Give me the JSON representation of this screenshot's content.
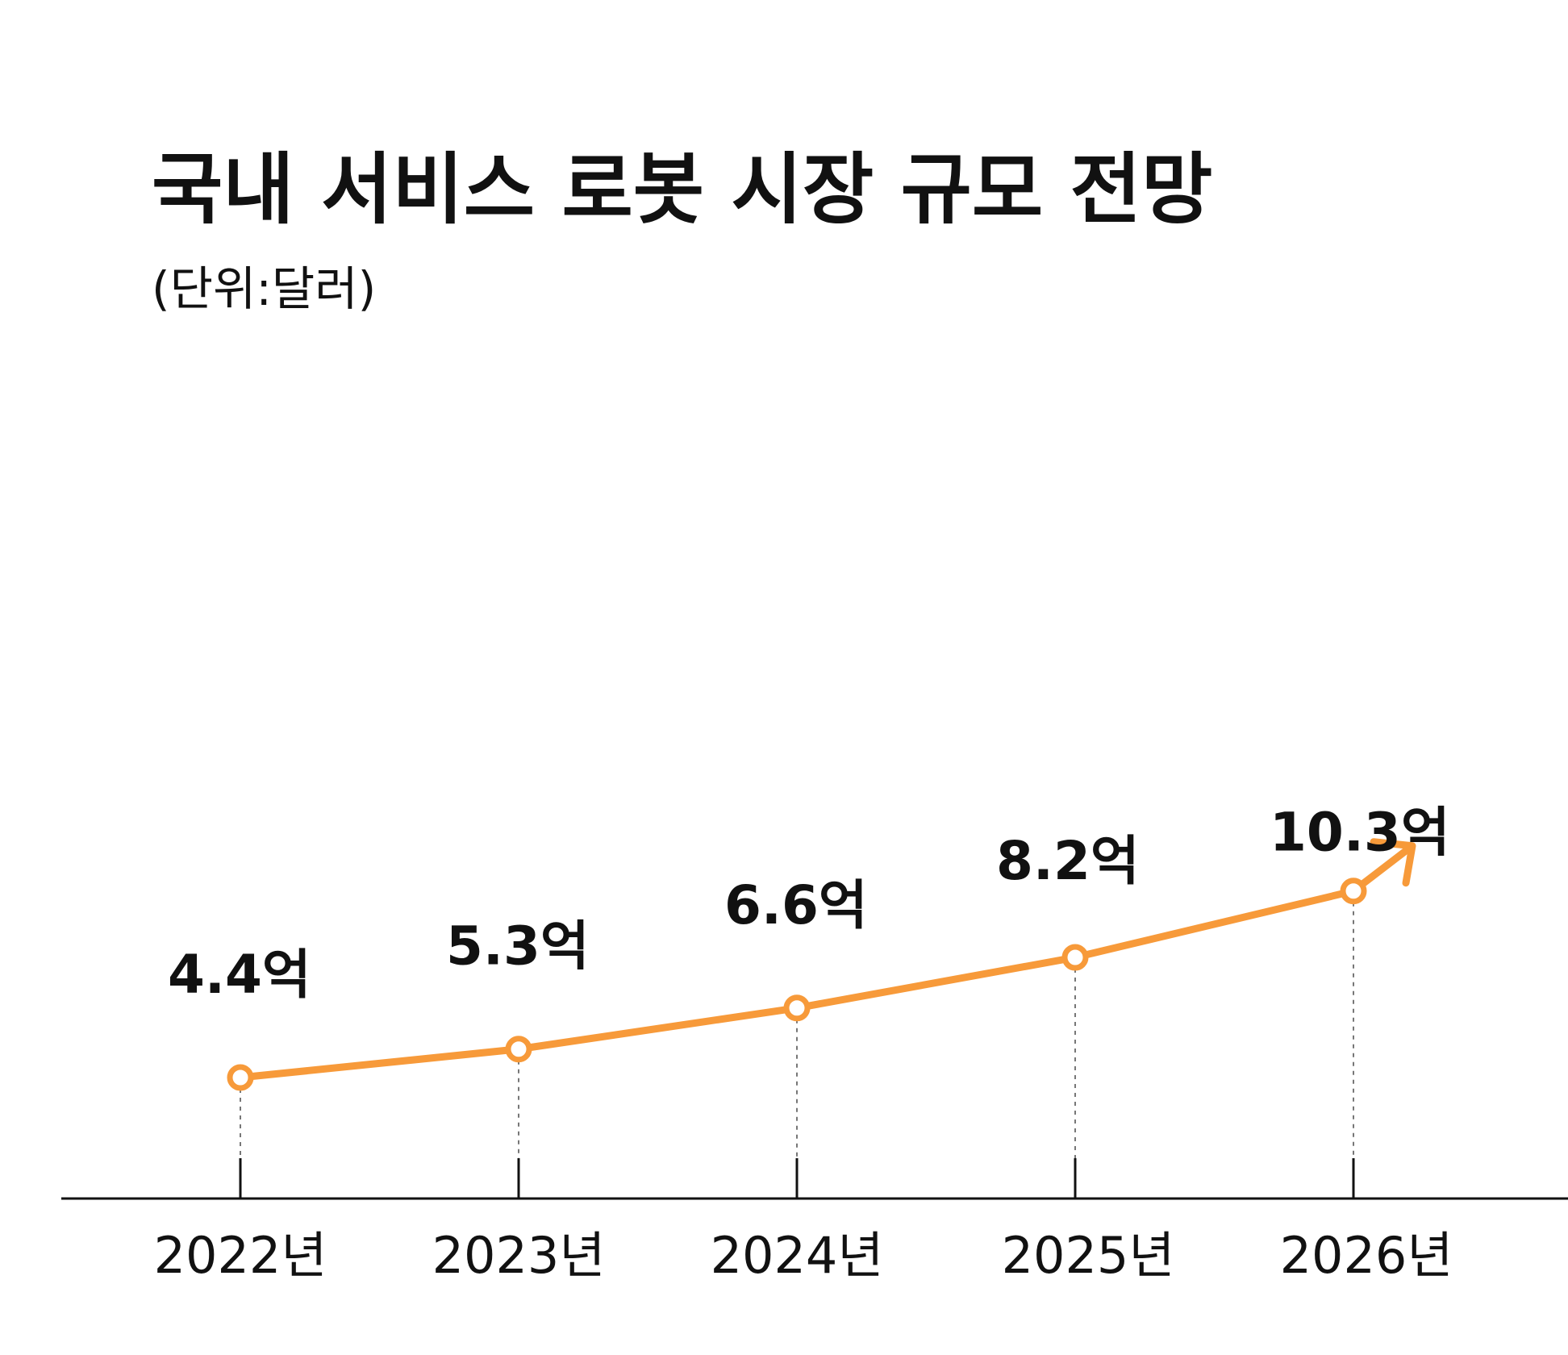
{
  "colors": {
    "line": "#F79A3A",
    "text": "#111111",
    "axis": "#111111",
    "guide": "#777777",
    "background": "#ffffff"
  },
  "chart_data": {
    "type": "line",
    "title": "국내 서비스 로봇 시장 규모 전망",
    "subtitle": "(단위:달러)",
    "categories": [
      "2022년",
      "2023년",
      "2024년",
      "2025년",
      "2026년"
    ],
    "values": [
      4.4,
      5.3,
      6.6,
      8.2,
      10.3
    ],
    "data_labels": [
      "4.4억",
      "5.3억",
      "6.6억",
      "8.2억",
      "10.3억"
    ],
    "unit": "억 달러",
    "trend_arrow": true,
    "grid": false,
    "legend": "none"
  }
}
